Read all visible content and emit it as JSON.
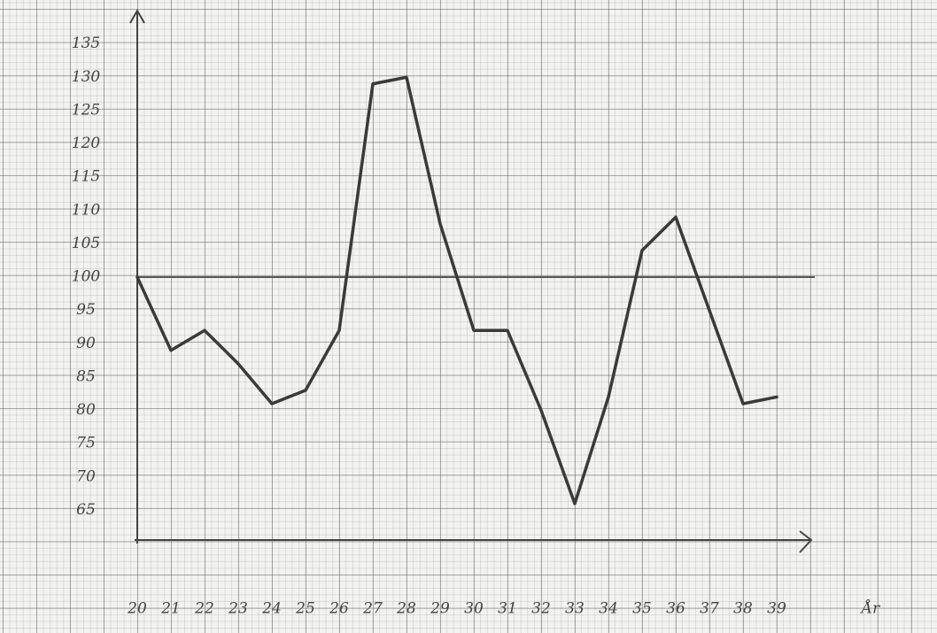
{
  "chart_data": {
    "type": "line",
    "x_label": "År",
    "categories": [
      "20",
      "21",
      "22",
      "23",
      "24",
      "25",
      "26",
      "27",
      "28",
      "29",
      "30",
      "31",
      "32",
      "33",
      "34",
      "35",
      "36",
      "37",
      "38",
      "39"
    ],
    "series": [
      {
        "color": "#3a3a3a",
        "values": [
          100,
          89,
          92,
          87,
          81,
          83,
          92,
          129,
          130,
          108,
          92,
          92,
          80,
          66,
          82,
          104,
          109,
          95,
          81,
          82
        ]
      }
    ],
    "hline": 100,
    "ylim": [
      60,
      140
    ],
    "yticks": [
      65,
      70,
      75,
      80,
      85,
      90,
      95,
      100,
      105,
      110,
      115,
      120,
      125,
      130,
      135
    ]
  }
}
